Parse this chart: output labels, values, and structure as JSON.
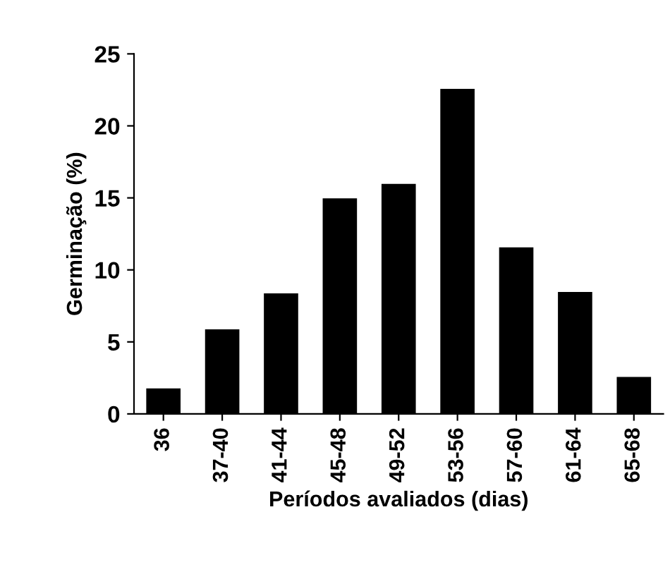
{
  "chart_data": {
    "type": "bar",
    "xlabel": "Períodos avaliados (dias)",
    "ylabel": "Germinação (%)",
    "categories": [
      "36",
      "37-40",
      "41-44",
      "45-48",
      "49-52",
      "53-56",
      "57-60",
      "61-64",
      "65-68"
    ],
    "values": [
      1.7,
      5.8,
      8.3,
      14.9,
      15.9,
      22.5,
      11.5,
      8.4,
      2.5
    ],
    "color": "#000000",
    "ylim": [
      0,
      25
    ],
    "yticks": [
      0,
      5,
      10,
      15,
      20,
      25
    ],
    "grid": false
  }
}
